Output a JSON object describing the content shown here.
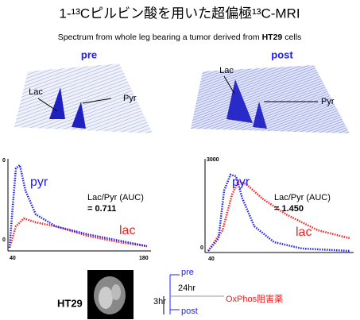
{
  "header": {
    "title": "1-¹³Cピルビン酸を用いた超偏極¹³C-MRI",
    "subtitle": {
      "text": "Spectrum from whole leg bearing a tumor derived from",
      "cell_line": "HT29",
      "suffix": "cells"
    }
  },
  "panels": [
    {
      "label": "pre",
      "spectrum": {
        "lac": "Lac",
        "pyr": "Pyr"
      },
      "plot": {
        "y_tick_top": "0",
        "y_tick_bottom": "0",
        "x_tick_start": "40",
        "x_tick_end": "180",
        "pyr": "pyr",
        "lac": "lac",
        "ratio_label": "Lac/Pyr (AUC)",
        "ratio_value": "= 0.711"
      }
    },
    {
      "label": "post",
      "spectrum": {
        "lac": "Lac",
        "pyr": "Pyr"
      },
      "plot": {
        "y_tick_top": "3000",
        "y_tick_bottom": "0",
        "x_tick_start": "40",
        "pyr": "pyr",
        "lac": "lac",
        "ratio_label": "Lac/Pyr (AUC)",
        "ratio_value": "= 1.450"
      }
    }
  ],
  "timeline": {
    "cell_line": "HT29",
    "start": "pre",
    "interval": "24hr",
    "duration": "3hr",
    "end": "post",
    "treatment": "OxPhos阻害薬"
  }
}
